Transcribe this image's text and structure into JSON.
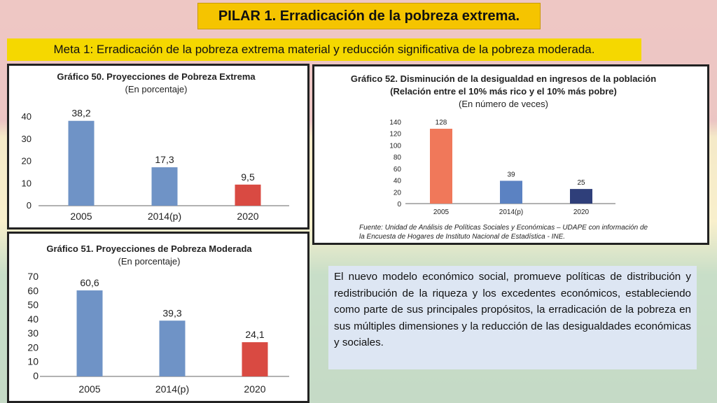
{
  "header": {
    "title": "PILAR 1. Erradicación de la pobreza extrema.",
    "subtitle": "Meta 1: Erradicación de la pobreza extrema material y reducción significativa de la pobreza moderada."
  },
  "chart_data": [
    {
      "type": "bar",
      "title": "Gráfico 50. Proyecciones de Pobreza Extrema",
      "subtitle": "(En porcentaje)",
      "categories": [
        "2005",
        "2014(p)",
        "2020"
      ],
      "values": [
        38.2,
        17.3,
        9.5
      ],
      "value_labels": [
        "38,2",
        "17,3",
        "9,5"
      ],
      "yticks": [
        "0",
        "10",
        "20",
        "30",
        "40"
      ],
      "ylim": [
        0,
        40
      ],
      "colors": [
        "#6f93c6",
        "#6f93c6",
        "#d94a42"
      ]
    },
    {
      "type": "bar",
      "title": "Gráfico 51. Proyecciones de Pobreza Moderada",
      "subtitle": "(En porcentaje)",
      "categories": [
        "2005",
        "2014(p)",
        "2020"
      ],
      "values": [
        60.6,
        39.3,
        24.1
      ],
      "value_labels": [
        "60,6",
        "39,3",
        "24,1"
      ],
      "yticks": [
        "0",
        "10",
        "20",
        "30",
        "40",
        "50",
        "60",
        "70"
      ],
      "ylim": [
        0,
        70
      ],
      "colors": [
        "#6f93c6",
        "#6f93c6",
        "#d94a42"
      ]
    },
    {
      "type": "bar",
      "title": "Gráfico 52. Disminución de la desigualdad en ingresos de la población",
      "subtitle": "(Relación entre el 10% más rico y el 10% más pobre)",
      "subtitle2": "(En número de veces)",
      "categories": [
        "2005",
        "2014(p)",
        "2020"
      ],
      "values": [
        128,
        39,
        25
      ],
      "value_labels": [
        "128",
        "39",
        "25"
      ],
      "yticks": [
        "0",
        "20",
        "40",
        "60",
        "80",
        "100",
        "120",
        "140"
      ],
      "ylim": [
        0,
        140
      ],
      "colors": [
        "#f0785a",
        "#5b82c2",
        "#2f3f7a"
      ],
      "source_line1": "Fuente: Unidad de Análisis de Políticas Sociales y Económicas – UDAPE con información de",
      "source_line2": "la Encuesta de Hogares de Instituto Nacional de Estadística - INE."
    }
  ],
  "description": "El nuevo modelo económico social, promueve políticas de distribución y redistribución de la riqueza y los excedentes económicos, estableciendo como parte de sus principales propósitos, la erradicación de la pobreza en sus múltiples dimensiones y la reducción de las desigualdades económicas y sociales."
}
